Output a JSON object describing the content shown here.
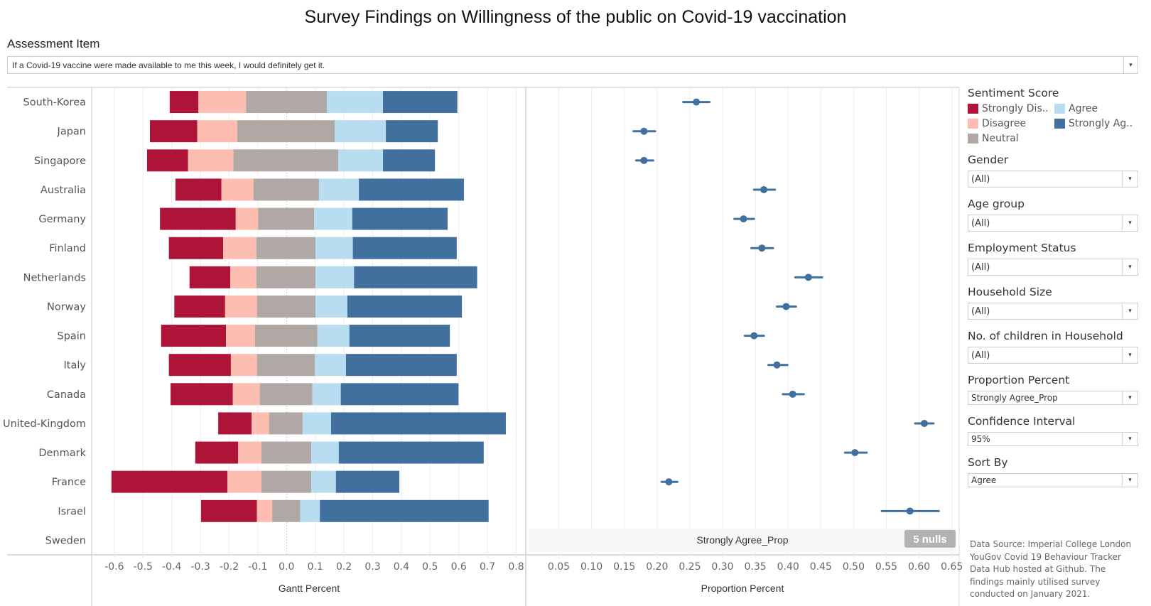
{
  "header": {
    "title": "Survey Findings on Willingness of the public on Covid-19 vaccination",
    "assessment_label": "Assessment Item",
    "assessment_value": "If a Covid-19 vaccine were made available to me this week, I would definitely get it.",
    "dropdown_icon": "▾"
  },
  "legend": {
    "title": "Sentiment Score",
    "items": [
      {
        "label": "Strongly Dis..",
        "color": "#ad1438"
      },
      {
        "label": "Agree",
        "color": "#b9ddf0"
      },
      {
        "label": "Disagree",
        "color": "#fdbdb0"
      },
      {
        "label": "Strongly Ag..",
        "color": "#41709e"
      },
      {
        "label": "Neutral",
        "color": "#b0a8a4"
      }
    ]
  },
  "filters": [
    {
      "title": "Gender",
      "value": "(All)"
    },
    {
      "title": "Age group",
      "value": "(All)"
    },
    {
      "title": "Employment Status",
      "value": "(All)"
    },
    {
      "title": "Household Size",
      "value": "(All)"
    },
    {
      "title": "No. of children in Household",
      "value": "(All)"
    },
    {
      "title": "Proportion Percent",
      "value": "Strongly Agree_Prop"
    },
    {
      "title": "Confidence Interval",
      "value": "95%"
    },
    {
      "title": "Sort By",
      "value": "Agree"
    }
  ],
  "source_note": "Data Source: Imperial College London YouGov Covid 19 Behaviour Tracker Data Hub hosted at Github. The findings mainly utilised survey conducted on January 2021.",
  "chart_data": [
    {
      "type": "bar",
      "subtype": "diverging-stacked-gantt",
      "xlabel": "Gantt Percent",
      "ylabel": "",
      "xlim": [
        -0.66,
        0.83
      ],
      "xticks": [
        -0.6,
        -0.5,
        -0.4,
        -0.3,
        -0.2,
        -0.1,
        0.0,
        0.1,
        0.2,
        0.3,
        0.4,
        0.5,
        0.6,
        0.7,
        0.8
      ],
      "xtick_labels": [
        "-0.6",
        "-0.5",
        "-0.4",
        "-0.3",
        "-0.2",
        "-0.1",
        "0.0",
        "0.1",
        "0.2",
        "0.3",
        "0.4",
        "0.5",
        "0.6",
        "0.7",
        "0.8"
      ],
      "grid": true,
      "categories": [
        "South-Korea",
        "Japan",
        "Singapore",
        "Australia",
        "Germany",
        "Finland",
        "Netherlands",
        "Norway",
        "Spain",
        "Italy",
        "Canada",
        "United-Kingdom",
        "Denmark",
        "France",
        "Israel",
        "Sweden"
      ],
      "series_order": [
        "Strongly Disagree",
        "Disagree",
        "Neutral",
        "Agree",
        "Strongly Agree"
      ],
      "series_colors": [
        "#ad1438",
        "#fdbdb0",
        "#b0a8a4",
        "#b9ddf0",
        "#41709e"
      ],
      "start": [
        -0.407,
        -0.476,
        -0.486,
        -0.387,
        -0.441,
        -0.41,
        -0.338,
        -0.391,
        -0.437,
        -0.41,
        -0.404,
        -0.238,
        -0.318,
        -0.61,
        -0.298,
        null
      ],
      "series": [
        {
          "name": "Strongly Disagree",
          "values": [
            0.1,
            0.165,
            0.143,
            0.16,
            0.264,
            0.189,
            0.142,
            0.177,
            0.226,
            0.216,
            0.217,
            0.116,
            0.149,
            0.404,
            0.195,
            null
          ]
        },
        {
          "name": "Disagree",
          "values": [
            0.166,
            0.139,
            0.158,
            0.112,
            0.078,
            0.116,
            0.091,
            0.111,
            0.101,
            0.091,
            0.094,
            0.061,
            0.081,
            0.118,
            0.053,
            null
          ]
        },
        {
          "name": "Neutral",
          "values": [
            0.282,
            0.34,
            0.365,
            0.228,
            0.195,
            0.206,
            0.206,
            0.204,
            0.217,
            0.202,
            0.183,
            0.117,
            0.174,
            0.174,
            0.098,
            null
          ]
        },
        {
          "name": "Agree",
          "values": [
            0.195,
            0.178,
            0.156,
            0.139,
            0.133,
            0.13,
            0.134,
            0.111,
            0.112,
            0.108,
            0.099,
            0.099,
            0.096,
            0.086,
            0.068,
            null
          ]
        },
        {
          "name": "Strongly Agree",
          "values": [
            0.259,
            0.181,
            0.181,
            0.366,
            0.332,
            0.362,
            0.429,
            0.399,
            0.35,
            0.386,
            0.41,
            0.609,
            0.505,
            0.221,
            0.588,
            null
          ]
        }
      ]
    },
    {
      "type": "scatter",
      "subtype": "point-with-confidence-interval",
      "title": "",
      "xlabel": "Proportion Percent",
      "xlim": [
        0.0,
        0.67
      ],
      "xticks": [
        0.05,
        0.1,
        0.15,
        0.2,
        0.25,
        0.3,
        0.35,
        0.4,
        0.45,
        0.5,
        0.55,
        0.6,
        0.65
      ],
      "xtick_labels": [
        "0.05",
        "0.10",
        "0.15",
        "0.20",
        "0.25",
        "0.30",
        "0.35",
        "0.40",
        "0.45",
        "0.50",
        "0.55",
        "0.60",
        "0.65"
      ],
      "grid": true,
      "color": "#41709e",
      "measure_label": "Strongly Agree_Prop",
      "nulls_badge": "5 nulls",
      "categories": [
        "South-Korea",
        "Japan",
        "Singapore",
        "Australia",
        "Germany",
        "Finland",
        "Netherlands",
        "Norway",
        "Spain",
        "Italy",
        "Canada",
        "United-Kingdom",
        "Denmark",
        "France",
        "Israel",
        "Sweden"
      ],
      "values": [
        0.26,
        0.18,
        0.18,
        0.363,
        0.332,
        0.36,
        0.431,
        0.397,
        0.348,
        0.383,
        0.407,
        0.608,
        0.502,
        0.218,
        0.586,
        null
      ],
      "ci_low": [
        0.24,
        0.164,
        0.168,
        0.348,
        0.318,
        0.344,
        0.411,
        0.383,
        0.334,
        0.37,
        0.392,
        0.594,
        0.487,
        0.207,
        0.543,
        null
      ],
      "ci_high": [
        0.28,
        0.197,
        0.194,
        0.38,
        0.348,
        0.377,
        0.452,
        0.412,
        0.363,
        0.399,
        0.424,
        0.622,
        0.52,
        0.231,
        0.63,
        null
      ]
    }
  ]
}
